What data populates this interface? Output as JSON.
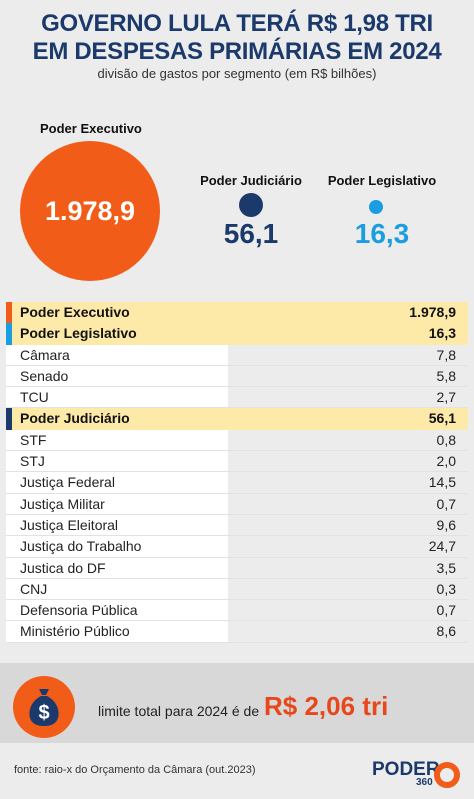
{
  "title_line1": "GOVERNO LULA TERÁ R$ 1,98 TRI",
  "title_line2": "EM DESPESAS PRIMÁRIAS EM 2024",
  "subtitle": "divisão de gastos por segmento (em R$ bilhões)",
  "bubbles": {
    "executivo": {
      "label": "Poder Executivo",
      "value": "1.978,9",
      "color": "#f25c19"
    },
    "judiciario": {
      "label": "Poder Judiciário",
      "value": "56,1",
      "color": "#1b3a6b"
    },
    "legislativo": {
      "label": "Poder Legislativo",
      "value": "16,3",
      "color": "#1a9ee0"
    }
  },
  "table": [
    {
      "label": "Poder Executivo",
      "value": "1.978,9",
      "type": "header",
      "color": "#f25c19"
    },
    {
      "label": "Poder Legislativo",
      "value": "16,3",
      "type": "header",
      "color": "#1a9ee0"
    },
    {
      "label": "Câmara",
      "value": "7,8",
      "type": "sub"
    },
    {
      "label": "Senado",
      "value": "5,8",
      "type": "sub"
    },
    {
      "label": "TCU",
      "value": "2,7",
      "type": "sub"
    },
    {
      "label": "Poder Judiciário",
      "value": "56,1",
      "type": "header",
      "color": "#1b3a6b"
    },
    {
      "label": "STF",
      "value": "0,8",
      "type": "sub"
    },
    {
      "label": "STJ",
      "value": "2,0",
      "type": "sub"
    },
    {
      "label": "Justiça Federal",
      "value": "14,5",
      "type": "sub"
    },
    {
      "label": "Justiça Militar",
      "value": "0,7",
      "type": "sub"
    },
    {
      "label": "Justiça Eleitoral",
      "value": "9,6",
      "type": "sub"
    },
    {
      "label": "Justiça do Trabalho",
      "value": "24,7",
      "type": "sub"
    },
    {
      "label": "Justica do DF",
      "value": "3,5",
      "type": "sub"
    },
    {
      "label": "CNJ",
      "value": "0,3",
      "type": "sub"
    },
    {
      "label": "Defensoria Pública",
      "value": "0,7",
      "type": "sub"
    },
    {
      "label": "Ministério Público",
      "value": "8,6",
      "type": "sub"
    }
  ],
  "limit": {
    "text": "limite total para 2024 é de",
    "value": "R$ 2,06 tri",
    "icon": "money-bag-icon"
  },
  "source": "fonte: raio-x do Orçamento da Câmara (out.2023)",
  "logo": {
    "word": "PODER",
    "number": "360"
  },
  "chart_data": {
    "type": "table",
    "title": "GOVERNO LULA TERÁ R$ 1,98 TRI EM DESPESAS PRIMÁRIAS EM 2024",
    "subtitle": "divisão de gastos por segmento (em R$ bilhões)",
    "categories": [
      "Poder Executivo",
      "Poder Judiciário",
      "Poder Legislativo"
    ],
    "values": [
      1978.9,
      56.1,
      16.3
    ],
    "breakdown": {
      "Poder Legislativo": {
        "Câmara": 7.8,
        "Senado": 5.8,
        "TCU": 2.7
      },
      "Poder Judiciário": {
        "STF": 0.8,
        "STJ": 2.0,
        "Justiça Federal": 14.5,
        "Justiça Militar": 0.7,
        "Justiça Eleitoral": 9.6,
        "Justiça do Trabalho": 24.7,
        "Justica do DF": 3.5,
        "CNJ": 0.3,
        "Defensoria Pública": 0.7,
        "Ministério Público": 8.6
      }
    },
    "total": "R$ 2,06 tri"
  }
}
